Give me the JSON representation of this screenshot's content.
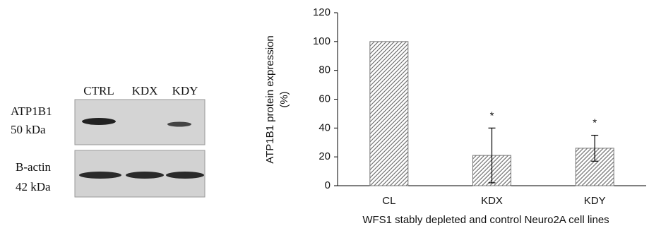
{
  "blot": {
    "lanes": [
      "CTRL",
      "KDX",
      "KDY"
    ],
    "rows": [
      {
        "label": "ATP1B1",
        "size": "50 kDa"
      },
      {
        "label": "B-actin",
        "size": "42 kDa"
      }
    ]
  },
  "chart_data": {
    "type": "bar",
    "ylabel": [
      "ATP1B1 protein expression",
      "(%)"
    ],
    "xlabel": "WFS1 stably depleted and control Neuro2A cell lines",
    "categories": [
      "CL",
      "KDX",
      "KDY"
    ],
    "values": [
      100,
      21,
      26
    ],
    "errors": [
      null,
      19,
      9
    ],
    "markers": [
      null,
      "*",
      "*"
    ],
    "color": "#777777",
    "ylim": [
      0,
      120
    ],
    "yticks": [
      0,
      20,
      40,
      60,
      80,
      100,
      120
    ]
  }
}
